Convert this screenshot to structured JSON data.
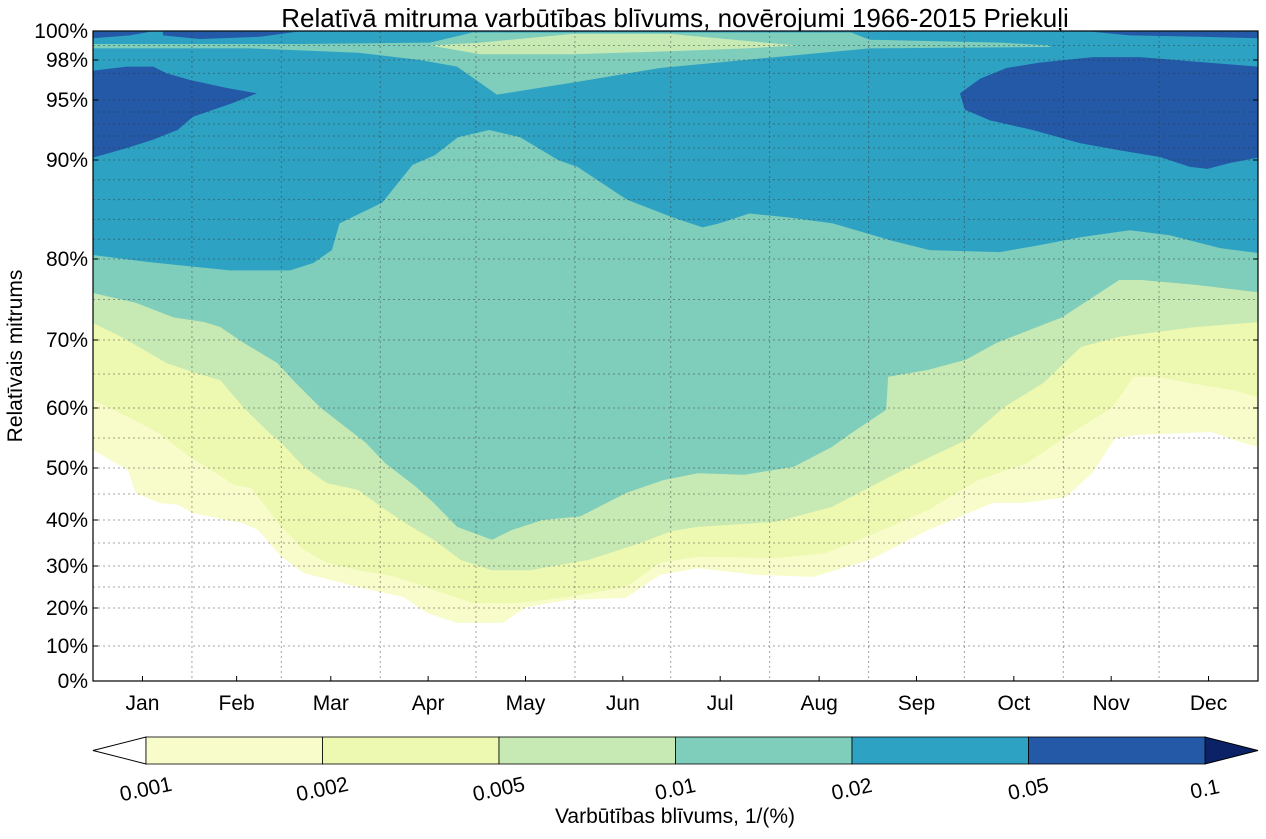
{
  "chart_data": {
    "type": "contourf",
    "title": "Relatīvā mitruma varbūtības blīvums, novērojumi 1966-2015 Priekuļi",
    "xlabel": "",
    "ylabel": "Relatīvais mitrums",
    "x_unit": "month position (0 = 1 Jan, 12 = 31 Dec)",
    "month_labels": [
      "Jan",
      "Feb",
      "Mar",
      "Apr",
      "May",
      "Jun",
      "Jul",
      "Aug",
      "Sep",
      "Oct",
      "Nov",
      "Dec"
    ],
    "month_days": [
      31,
      28,
      31,
      30,
      31,
      30,
      31,
      31,
      30,
      31,
      30,
      31
    ],
    "y_ticks": [
      0,
      10,
      20,
      30,
      40,
      50,
      60,
      70,
      80,
      90,
      95,
      98,
      100
    ],
    "y_tick_labels": [
      "0%",
      "10%",
      "20%",
      "30%",
      "40%",
      "50%",
      "60%",
      "70%",
      "80%",
      "90%",
      "95%",
      "98%",
      "100%"
    ],
    "y_minor_grid": [
      25,
      35,
      45,
      55,
      65,
      75,
      82,
      84,
      86,
      88,
      91,
      92,
      93,
      94,
      97,
      99
    ],
    "ylim": [
      0,
      100
    ],
    "grid": true,
    "colorbar": {
      "label": "Varbūtības blīvums, 1/(%)",
      "position": "bottom",
      "levels": [
        "0.001",
        "0.002",
        "0.005",
        "0.01",
        "0.02",
        "0.05",
        "0.1"
      ],
      "colors": [
        "#f8fccb",
        "#edf8b1",
        "#c7e9b4",
        "#7fcdbb",
        "#2ea2c3",
        "#2359a7"
      ],
      "under_color": "#ffffff",
      "over_color": "#0c2266"
    },
    "regions": [
      {
        "level": "0.001",
        "color": "#f8fccb",
        "lower": [
          [
            0,
            53
          ],
          [
            0.36,
            49.6
          ],
          [
            0.44,
            45.2
          ],
          [
            0.68,
            43.3
          ],
          [
            0.88,
            42.9
          ],
          [
            1.03,
            41.3
          ],
          [
            1.55,
            39.3
          ],
          [
            1.7,
            37.8
          ],
          [
            1.94,
            32
          ],
          [
            2.17,
            28.3
          ],
          [
            2.73,
            25
          ],
          [
            3.2,
            22.6
          ],
          [
            3.44,
            18.7
          ],
          [
            3.75,
            16.1
          ],
          [
            4.22,
            16.1
          ],
          [
            4.46,
            20.2
          ],
          [
            4.89,
            21.9
          ],
          [
            5.49,
            22.4
          ],
          [
            5.84,
            27.9
          ],
          [
            6.23,
            29.5
          ],
          [
            6.83,
            27.9
          ],
          [
            7.42,
            27.4
          ],
          [
            8,
            31.3
          ],
          [
            8.6,
            37.8
          ],
          [
            9.27,
            43.3
          ],
          [
            9.59,
            43.3
          ],
          [
            10.02,
            44.4
          ],
          [
            10.29,
            49
          ],
          [
            10.53,
            55
          ],
          [
            10.76,
            55.5
          ],
          [
            11.52,
            56
          ],
          [
            11.84,
            54.2
          ],
          [
            12,
            53.5
          ]
        ]
      },
      {
        "level": "0.002",
        "color": "#edf8b1",
        "lower": [
          [
            0,
            61.2
          ],
          [
            0.36,
            58.5
          ],
          [
            0.68,
            55.8
          ],
          [
            1,
            51.8
          ],
          [
            1.27,
            49
          ],
          [
            1.46,
            46.7
          ],
          [
            1.63,
            46.2
          ],
          [
            1.78,
            42.5
          ],
          [
            1.94,
            38.5
          ],
          [
            2.17,
            33.5
          ],
          [
            2.41,
            30.7
          ],
          [
            2.73,
            29
          ],
          [
            3.12,
            27.4
          ],
          [
            3.51,
            24.3
          ],
          [
            3.91,
            21.2
          ],
          [
            4.39,
            21.2
          ],
          [
            4.89,
            22.6
          ],
          [
            5.49,
            25
          ],
          [
            5.84,
            30.7
          ],
          [
            6.23,
            32
          ],
          [
            7.03,
            31.7
          ],
          [
            7.54,
            32.8
          ],
          [
            7.81,
            35
          ],
          [
            8.21,
            38.5
          ],
          [
            8.6,
            41.9
          ],
          [
            9.12,
            47.7
          ],
          [
            9.62,
            50.8
          ],
          [
            10.02,
            55.2
          ],
          [
            10.5,
            60.1
          ],
          [
            10.72,
            64.6
          ],
          [
            10.96,
            64.6
          ],
          [
            11.28,
            63.7
          ],
          [
            11.75,
            62.6
          ],
          [
            12,
            61.6
          ]
        ]
      },
      {
        "level": "0.005",
        "color": "#c7e9b4",
        "lower": [
          [
            0,
            72.1
          ],
          [
            0.29,
            70.4
          ],
          [
            0.76,
            66.6
          ],
          [
            1.07,
            65.1
          ],
          [
            1.31,
            64.1
          ],
          [
            1.55,
            60.1
          ],
          [
            1.82,
            55.8
          ],
          [
            1.94,
            54.2
          ],
          [
            2.17,
            50.2
          ],
          [
            2.41,
            47.1
          ],
          [
            2.73,
            45.8
          ],
          [
            2.97,
            42.5
          ],
          [
            3.28,
            38.5
          ],
          [
            3.51,
            35.7
          ],
          [
            3.79,
            31.3
          ],
          [
            4.11,
            29
          ],
          [
            4.5,
            29
          ],
          [
            5.1,
            31.3
          ],
          [
            5.64,
            35
          ],
          [
            5.96,
            37.6
          ],
          [
            6.23,
            38.5
          ],
          [
            7.03,
            39.6
          ],
          [
            7.61,
            42.5
          ],
          [
            8,
            46.3
          ],
          [
            8.41,
            50.2
          ],
          [
            9,
            54.7
          ],
          [
            9.38,
            60.1
          ],
          [
            9.79,
            63.7
          ],
          [
            10.18,
            69
          ],
          [
            10.57,
            70.4
          ],
          [
            11.36,
            71.6
          ],
          [
            12,
            72.2
          ]
        ]
      },
      {
        "level": "0.01",
        "color": "#7fcdbb",
        "lower": [
          [
            0,
            75.8
          ],
          [
            0.44,
            74.6
          ],
          [
            0.83,
            72.8
          ],
          [
            1.15,
            72.2
          ],
          [
            1.31,
            71.6
          ],
          [
            1.55,
            69.6
          ],
          [
            1.9,
            66.6
          ],
          [
            2.06,
            64.1
          ],
          [
            2.34,
            60.1
          ],
          [
            2.81,
            54.2
          ],
          [
            3.01,
            50.8
          ],
          [
            3.32,
            46.5
          ],
          [
            3.51,
            43.3
          ],
          [
            3.75,
            38.5
          ],
          [
            4.11,
            35.7
          ],
          [
            4.31,
            37.8
          ],
          [
            4.63,
            40
          ],
          [
            5.02,
            40.7
          ],
          [
            5.49,
            45.2
          ],
          [
            5.88,
            47.7
          ],
          [
            6.23,
            49
          ],
          [
            6.71,
            48.7
          ],
          [
            7.22,
            50.2
          ],
          [
            7.61,
            53.5
          ],
          [
            7.81,
            55.8
          ],
          [
            8.17,
            59.7
          ],
          [
            8.19,
            64.6
          ],
          [
            8.6,
            65.6
          ],
          [
            8.99,
            67.1
          ],
          [
            9.31,
            69.6
          ],
          [
            9.98,
            72.8
          ],
          [
            10.57,
            77.4
          ],
          [
            10.81,
            77.4
          ],
          [
            11.36,
            76.8
          ],
          [
            12,
            75.9
          ]
        ]
      },
      {
        "level": "0.02",
        "color": "#2ea2c3",
        "lower": [
          [
            0,
            80.4
          ],
          [
            0.59,
            79.6
          ],
          [
            1.41,
            78.6
          ],
          [
            2.03,
            78.6
          ],
          [
            2.27,
            79.5
          ],
          [
            2.46,
            80.9
          ],
          [
            2.54,
            83.6
          ],
          [
            2.98,
            85.7
          ],
          [
            3.29,
            89.5
          ],
          [
            3.52,
            90.4
          ],
          [
            3.76,
            91.9
          ],
          [
            4.08,
            92.5
          ],
          [
            4.4,
            91.9
          ],
          [
            4.79,
            90
          ],
          [
            4.99,
            89.3
          ],
          [
            5.5,
            86
          ],
          [
            5.97,
            84.2
          ],
          [
            6.28,
            83.2
          ],
          [
            6.45,
            83.6
          ],
          [
            6.76,
            84.6
          ],
          [
            7.16,
            84.2
          ],
          [
            7.62,
            83.6
          ],
          [
            8.21,
            81.9
          ],
          [
            8.62,
            80.9
          ],
          [
            9.34,
            80.7
          ],
          [
            9.75,
            81.4
          ],
          [
            10.17,
            82.2
          ],
          [
            10.68,
            82.9
          ],
          [
            11.09,
            82.4
          ],
          [
            11.61,
            81.1
          ],
          [
            12,
            80.6
          ]
        ]
      }
    ],
    "patches": [
      {
        "level": "0.01",
        "color": "#7fcdbb",
        "polygon": [
          [
            0,
            99.1
          ],
          [
            2.13,
            99.1
          ],
          [
            3.47,
            99.2
          ],
          [
            3.91,
            99.9
          ],
          [
            7.81,
            99.9
          ],
          [
            8,
            99.4
          ],
          [
            9.34,
            99.2
          ],
          [
            9.86,
            99
          ],
          [
            9.86,
            98.9
          ],
          [
            8,
            98.8
          ],
          [
            7.03,
            98.2
          ],
          [
            5.84,
            97.4
          ],
          [
            5.02,
            96.4
          ],
          [
            4.16,
            95.4
          ],
          [
            3.75,
            97.5
          ],
          [
            3.37,
            98
          ],
          [
            2.73,
            98.5
          ],
          [
            1.62,
            98.8
          ],
          [
            0,
            98.8
          ]
        ]
      },
      {
        "level": "0.005",
        "color": "#c7e9b4",
        "polygon": [
          [
            3.47,
            99
          ],
          [
            3.99,
            99.2
          ],
          [
            4.94,
            99.8
          ],
          [
            5.94,
            99.8
          ],
          [
            7.25,
            99
          ],
          [
            6.74,
            98.8
          ],
          [
            5.94,
            98.6
          ],
          [
            4.94,
            98.4
          ],
          [
            3.99,
            98.4
          ]
        ]
      },
      {
        "level": "0.05",
        "color": "#2359a7",
        "polygon": [
          [
            0,
            99.95
          ],
          [
            0.59,
            99.95
          ],
          [
            0.38,
            99.7
          ],
          [
            0,
            99.5
          ]
        ]
      },
      {
        "level": "0.05",
        "color": "#2359a7",
        "polygon": [
          [
            0.72,
            99.95
          ],
          [
            2.1,
            99.95
          ],
          [
            1.72,
            99.6
          ],
          [
            1.1,
            99.45
          ],
          [
            0.72,
            99.7
          ]
        ]
      },
      {
        "level": "0.05",
        "color": "#2359a7",
        "polygon": [
          [
            10.29,
            99.95
          ],
          [
            12,
            99.95
          ],
          [
            12,
            99.5
          ],
          [
            11.4,
            99.6
          ],
          [
            10.68,
            99.7
          ]
        ]
      },
      {
        "level": "0.05",
        "color": "#2359a7",
        "polygon": [
          [
            0,
            97.2
          ],
          [
            0.35,
            97.5
          ],
          [
            0.62,
            97.5
          ],
          [
            0.76,
            97
          ],
          [
            1,
            96.5
          ],
          [
            1.38,
            95.9
          ],
          [
            1.69,
            95.5
          ],
          [
            1.44,
            94.75
          ],
          [
            1.03,
            93.6
          ],
          [
            0.87,
            92.5
          ],
          [
            0.62,
            91.7
          ],
          [
            0.35,
            91
          ],
          [
            0,
            90.2
          ]
        ]
      },
      {
        "level": "0.05",
        "color": "#2359a7",
        "polygon": [
          [
            8.93,
            95.5
          ],
          [
            9.14,
            96.6
          ],
          [
            9.41,
            97.4
          ],
          [
            9.75,
            97.8
          ],
          [
            10.3,
            98.2
          ],
          [
            10.78,
            98.2
          ],
          [
            11.4,
            97.85
          ],
          [
            12,
            97.5
          ],
          [
            12,
            90.2
          ],
          [
            11.71,
            89.7
          ],
          [
            11.48,
            89.1
          ],
          [
            11.3,
            89.3
          ],
          [
            10.99,
            90.25
          ],
          [
            10.58,
            90.8
          ],
          [
            10.17,
            91.4
          ],
          [
            9.68,
            92.5
          ],
          [
            9.24,
            93.3
          ],
          [
            8.98,
            94.2
          ]
        ]
      }
    ]
  }
}
